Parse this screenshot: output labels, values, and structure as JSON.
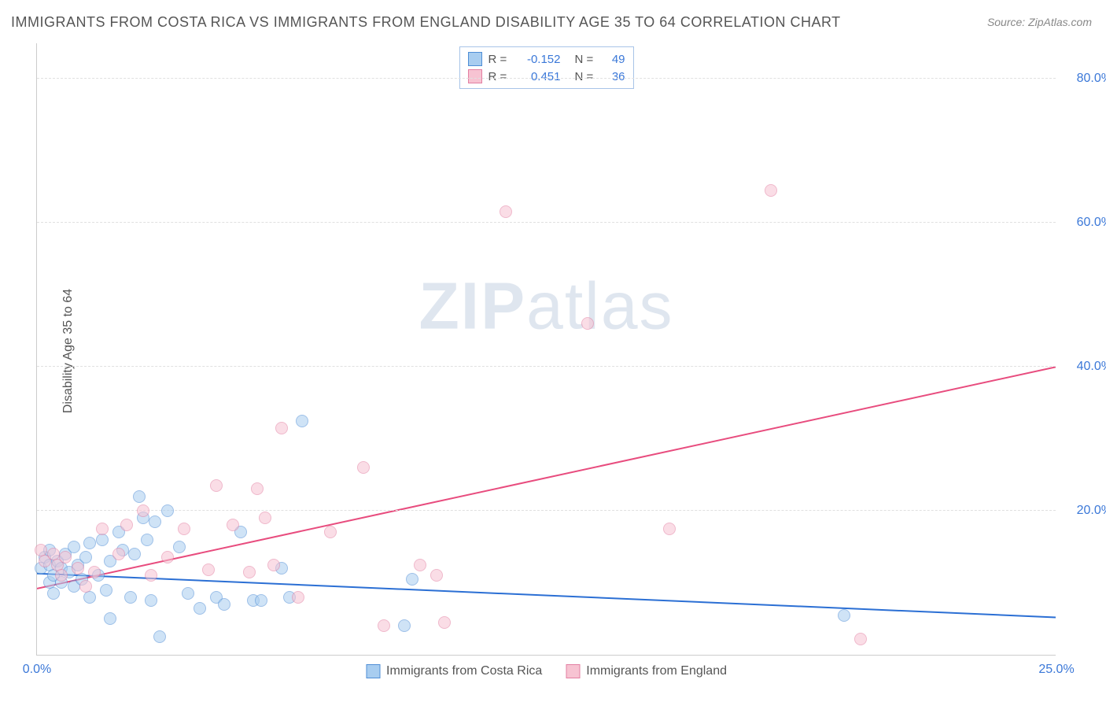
{
  "title": "IMMIGRANTS FROM COSTA RICA VS IMMIGRANTS FROM ENGLAND DISABILITY AGE 35 TO 64 CORRELATION CHART",
  "source": "Source: ZipAtlas.com",
  "watermark": "ZIPatlas",
  "y_axis_title": "Disability Age 35 to 64",
  "chart": {
    "type": "scatter",
    "background_color": "#ffffff",
    "grid_color": "#e0e0e0",
    "axis_line_color": "#cccccc",
    "tick_label_color": "#3b78d8",
    "tick_fontsize": 16,
    "title_color": "#555555",
    "title_fontsize": 18,
    "marker_radius": 8,
    "marker_opacity": 0.55,
    "xlim": [
      0,
      25
    ],
    "ylim": [
      0,
      85
    ],
    "x_ticks": [
      {
        "v": 0,
        "label": "0.0%"
      },
      {
        "v": 25,
        "label": "25.0%"
      }
    ],
    "y_ticks": [
      {
        "v": 20,
        "label": "20.0%"
      },
      {
        "v": 40,
        "label": "40.0%"
      },
      {
        "v": 60,
        "label": "60.0%"
      },
      {
        "v": 80,
        "label": "80.0%"
      }
    ],
    "legend_top": [
      {
        "swatch_fill": "#a8cdf0",
        "swatch_stroke": "#4f8ed6",
        "r": "-0.152",
        "n": "49"
      },
      {
        "swatch_fill": "#f7c3d2",
        "swatch_stroke": "#e37fa2",
        "r": "0.451",
        "n": "36"
      }
    ],
    "legend_bottom": [
      {
        "swatch_fill": "#a8cdf0",
        "swatch_stroke": "#4f8ed6",
        "label": "Immigrants from Costa Rica"
      },
      {
        "swatch_fill": "#f7c3d2",
        "swatch_stroke": "#e37fa2",
        "label": "Immigrants from England"
      }
    ],
    "series": [
      {
        "name": "Immigrants from Costa Rica",
        "marker_fill": "#a8cdf0",
        "marker_stroke": "#4f8ed6",
        "trend_color": "#2b6fd4",
        "trend_width": 2,
        "trend": {
          "x1": 0,
          "y1": 11.3,
          "x2": 25,
          "y2": 5.2
        },
        "points": [
          [
            0.1,
            12.0
          ],
          [
            0.2,
            13.5
          ],
          [
            0.3,
            10.0
          ],
          [
            0.3,
            12.5
          ],
          [
            0.3,
            14.5
          ],
          [
            0.4,
            11.0
          ],
          [
            0.4,
            8.5
          ],
          [
            0.5,
            13.0
          ],
          [
            0.6,
            12.0
          ],
          [
            0.6,
            10.0
          ],
          [
            0.7,
            14.0
          ],
          [
            0.8,
            11.5
          ],
          [
            0.9,
            15.0
          ],
          [
            0.9,
            9.5
          ],
          [
            1.0,
            12.5
          ],
          [
            1.1,
            10.5
          ],
          [
            1.2,
            13.5
          ],
          [
            1.3,
            8.0
          ],
          [
            1.3,
            15.5
          ],
          [
            1.5,
            11.0
          ],
          [
            1.6,
            16.0
          ],
          [
            1.7,
            9.0
          ],
          [
            1.8,
            13.0
          ],
          [
            1.8,
            5.0
          ],
          [
            2.0,
            17.0
          ],
          [
            2.1,
            14.5
          ],
          [
            2.3,
            8.0
          ],
          [
            2.4,
            14.0
          ],
          [
            2.5,
            22.0
          ],
          [
            2.6,
            19.0
          ],
          [
            2.7,
            16.0
          ],
          [
            2.8,
            7.5
          ],
          [
            2.9,
            18.5
          ],
          [
            3.0,
            2.5
          ],
          [
            3.2,
            20.0
          ],
          [
            3.5,
            15.0
          ],
          [
            3.7,
            8.5
          ],
          [
            4.0,
            6.5
          ],
          [
            4.4,
            8.0
          ],
          [
            4.6,
            7.0
          ],
          [
            5.0,
            17.0
          ],
          [
            5.3,
            7.5
          ],
          [
            5.5,
            7.5
          ],
          [
            6.0,
            12.0
          ],
          [
            6.2,
            8.0
          ],
          [
            6.5,
            32.5
          ],
          [
            9.0,
            4.0
          ],
          [
            9.2,
            10.5
          ],
          [
            19.8,
            5.5
          ]
        ]
      },
      {
        "name": "Immigrants from England",
        "marker_fill": "#f7c3d2",
        "marker_stroke": "#e37fa2",
        "trend_color": "#e84c7e",
        "trend_width": 2,
        "trend": {
          "x1": 0,
          "y1": 9.2,
          "x2": 25,
          "y2": 40.0
        },
        "points": [
          [
            0.1,
            14.5
          ],
          [
            0.2,
            13.0
          ],
          [
            0.4,
            14.0
          ],
          [
            0.5,
            12.5
          ],
          [
            0.6,
            11.0
          ],
          [
            0.7,
            13.5
          ],
          [
            1.0,
            12.0
          ],
          [
            1.2,
            9.5
          ],
          [
            1.4,
            11.5
          ],
          [
            1.6,
            17.5
          ],
          [
            2.0,
            14.0
          ],
          [
            2.2,
            18.0
          ],
          [
            2.6,
            20.0
          ],
          [
            2.8,
            11.0
          ],
          [
            3.2,
            13.5
          ],
          [
            3.6,
            17.5
          ],
          [
            4.2,
            11.8
          ],
          [
            4.4,
            23.5
          ],
          [
            4.8,
            18.0
          ],
          [
            5.2,
            11.5
          ],
          [
            5.4,
            23.0
          ],
          [
            5.6,
            19.0
          ],
          [
            5.8,
            12.5
          ],
          [
            6.0,
            31.5
          ],
          [
            6.4,
            8.0
          ],
          [
            7.2,
            17.0
          ],
          [
            8.0,
            26.0
          ],
          [
            8.5,
            4.0
          ],
          [
            9.4,
            12.5
          ],
          [
            9.8,
            11.0
          ],
          [
            10.0,
            4.5
          ],
          [
            11.5,
            61.5
          ],
          [
            13.5,
            46.0
          ],
          [
            15.5,
            17.5
          ],
          [
            18.0,
            64.5
          ],
          [
            20.2,
            2.2
          ]
        ]
      }
    ]
  }
}
